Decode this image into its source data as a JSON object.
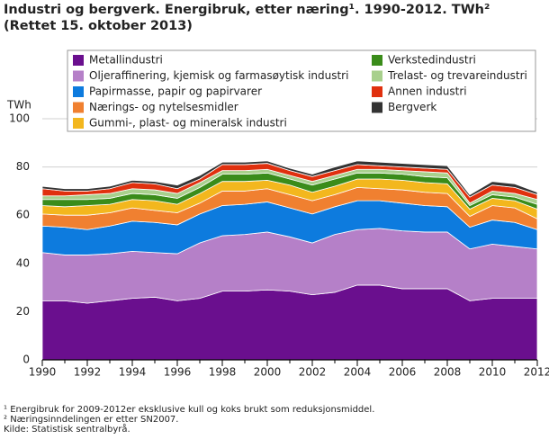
{
  "chart_data": {
    "type": "stacked_area",
    "title": "Industri og bergverk. Energibruk, etter næring¹. 1990-2012. TWh²",
    "subtitle": "(Rettet 15. oktober 2013)",
    "y_label": "TWh",
    "x": [
      1990,
      1991,
      1992,
      1993,
      1994,
      1995,
      1996,
      1997,
      1998,
      1999,
      2000,
      2001,
      2002,
      2003,
      2004,
      2005,
      2006,
      2007,
      2008,
      2009,
      2010,
      2011,
      2012
    ],
    "xlim": [
      1990,
      2012
    ],
    "xticks": [
      1990,
      1992,
      1994,
      1996,
      1998,
      2000,
      2002,
      2004,
      2006,
      2008,
      2010,
      2012
    ],
    "ylim": [
      0,
      100
    ],
    "yticks": [
      0,
      20,
      40,
      60,
      80,
      100
    ],
    "grid": true,
    "series": [
      {
        "name": "Metallindustri",
        "color": "#6a0f8e",
        "values": [
          24.5,
          24.5,
          23.5,
          24.5,
          25.5,
          26,
          24.5,
          25.5,
          28.5,
          28.5,
          29,
          28.5,
          27,
          28,
          31,
          31,
          29.5,
          29.5,
          29.5,
          24.5,
          25.5,
          25.5,
          25.5
        ]
      },
      {
        "name": "Oljeraffinering, kjemisk og farmasøytisk industri",
        "color": "#b580c8",
        "values": [
          20,
          19,
          20,
          19.5,
          19.5,
          18.5,
          19.5,
          23,
          23,
          23.5,
          24,
          22.5,
          21.5,
          24,
          23,
          23.5,
          24,
          23.5,
          23.5,
          21.5,
          22.5,
          21.5,
          20.5
        ]
      },
      {
        "name": "Papirmasse, papir og papirvarer",
        "color": "#0d7bde",
        "values": [
          11,
          11.5,
          10.5,
          11.5,
          12.5,
          12.5,
          12,
          12,
          12.5,
          12.5,
          12.5,
          12,
          12,
          11.5,
          12,
          11.5,
          11.5,
          11,
          10.5,
          9,
          10,
          10,
          8
        ]
      },
      {
        "name": "Nærings- og nytelsesmidler",
        "color": "#f08030",
        "values": [
          5,
          5,
          6,
          5.5,
          5.5,
          5,
          5,
          4.5,
          6,
          5.5,
          5.5,
          5.5,
          5.5,
          5,
          5.5,
          5,
          5.5,
          5.5,
          5.5,
          4.5,
          6,
          6,
          4.5
        ]
      },
      {
        "name": "Gummi-, plast- og mineralsk industri",
        "color": "#f3b71e",
        "values": [
          3.5,
          3.5,
          4,
          3.5,
          3.5,
          4,
          3.5,
          4,
          4,
          4,
          3.5,
          4,
          3.5,
          3.5,
          3.5,
          4,
          4,
          4,
          4,
          3,
          3,
          3,
          4
        ]
      },
      {
        "name": "Verkstedindustri",
        "color": "#3a8c1a",
        "values": [
          2.5,
          3,
          2.5,
          2.5,
          2.5,
          2.5,
          2.5,
          2.5,
          3,
          3,
          3,
          2.5,
          3,
          3,
          2.5,
          2.5,
          2.5,
          2.5,
          2.5,
          1.5,
          1.5,
          1.5,
          2
        ]
      },
      {
        "name": "Trelast- og trevareindustri",
        "color": "#a8d08d",
        "values": [
          1.5,
          1.5,
          2,
          2,
          2,
          2,
          2,
          2,
          1.5,
          1.5,
          1.5,
          1.5,
          1.5,
          1.5,
          1.5,
          1.5,
          1.5,
          2,
          2,
          1,
          1.5,
          1.5,
          2
        ]
      },
      {
        "name": "Annen industri",
        "color": "#e0300e",
        "values": [
          3,
          2,
          1.5,
          2,
          2.5,
          2.5,
          2,
          1.5,
          2.5,
          2.5,
          2.5,
          2,
          2,
          2,
          2,
          1.5,
          1.5,
          1.5,
          1.5,
          2.5,
          2.5,
          2.5,
          2
        ]
      },
      {
        "name": "Bergverk",
        "color": "#333333",
        "values": [
          1,
          1,
          1,
          1,
          1,
          1,
          1.5,
          1.5,
          1,
          1,
          1,
          1,
          1,
          1.5,
          1.5,
          1.5,
          1.5,
          1.5,
          1.5,
          1,
          1.5,
          1.5,
          1
        ]
      }
    ],
    "footnotes": [
      "¹ Energibruk for 2009-2012er eksklusive kull og koks brukt som reduksjonsmiddel.",
      "² Næringsinndelingen er etter SN2007.",
      "Kilde: Statistisk sentralbyrå."
    ]
  }
}
